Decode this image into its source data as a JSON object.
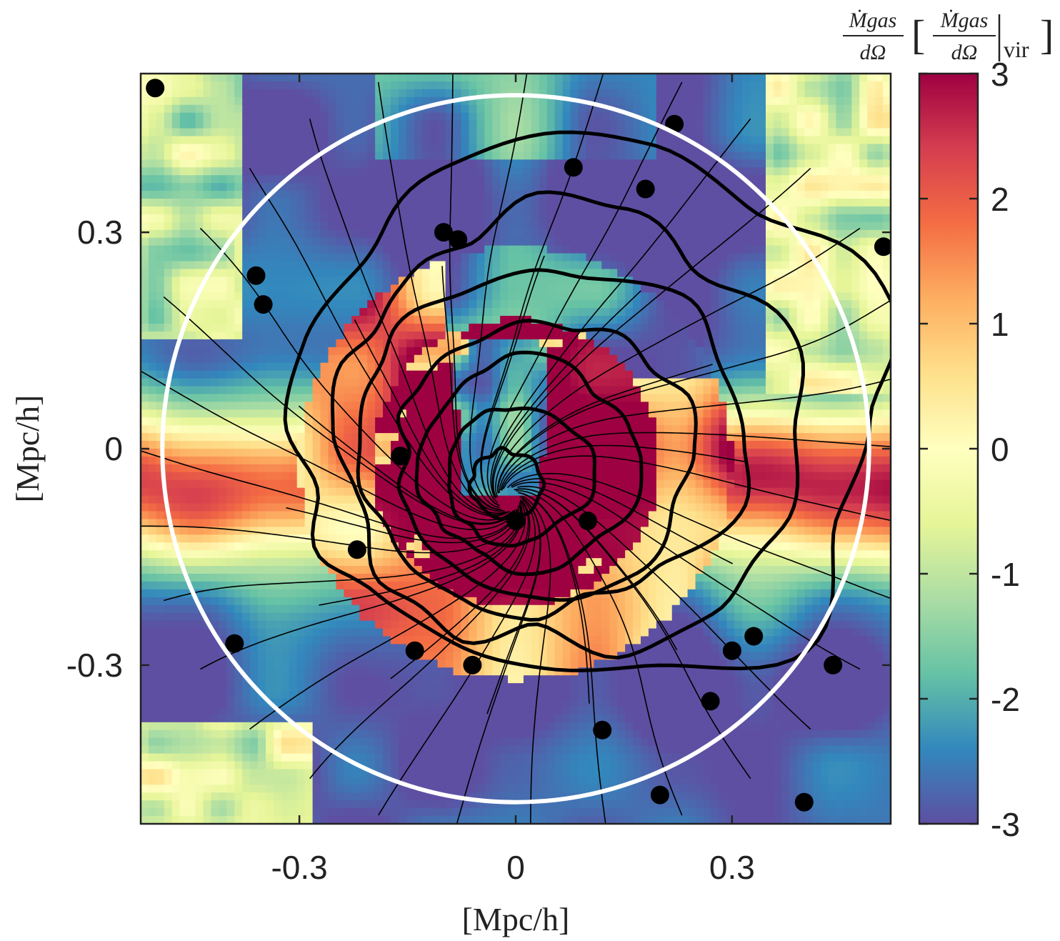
{
  "chart_data": {
    "type": "heatmap",
    "xlabel": "[Mpc/h]",
    "ylabel": "[Mpc/h]",
    "xlim": [
      -0.52,
      0.52
    ],
    "ylim": [
      -0.52,
      0.52
    ],
    "x_ticks": [
      {
        "value": -0.3,
        "label": "-0.3"
      },
      {
        "value": 0,
        "label": "0"
      },
      {
        "value": 0.3,
        "label": "0.3"
      }
    ],
    "y_ticks": [
      {
        "value": 0.3,
        "label": "0.3"
      },
      {
        "value": 0,
        "label": "0"
      },
      {
        "value": -0.3,
        "label": "-0.3"
      }
    ],
    "colorbar": {
      "label_left_num": "Ṁgas",
      "label_left_den": "dΩ",
      "label_unit_num": "Ṁgas",
      "label_unit_den": "dΩ",
      "label_unit_sub": "vir",
      "range": [
        -3,
        3
      ],
      "colormap": "Spectral (reversed)",
      "ticks": [
        {
          "value": 3,
          "label": "3"
        },
        {
          "value": 2,
          "label": "2"
        },
        {
          "value": 1,
          "label": "1"
        },
        {
          "value": 0,
          "label": "0"
        },
        {
          "value": -1,
          "label": "-1"
        },
        {
          "value": -2,
          "label": "-2"
        },
        {
          "value": -3,
          "label": "-3"
        }
      ]
    },
    "virial_circle": {
      "center": [
        0,
        0
      ],
      "radius": 0.49,
      "color": "#ffffff"
    },
    "overlays": [
      "streamlines",
      "density contours"
    ],
    "field_description": "Inner disc (r < ~0.2) dominated by inflow (high positive values, dark red) with a tongue of outflow from centre towards top; outer ring mostly outflow (blue/purple) except a red/orange band along the horizontal axis on both sides."
  },
  "colors": {
    "map": [
      "#5e4fa2",
      "#3288bd",
      "#66c2a5",
      "#abdda4",
      "#e6f598",
      "#ffffbf",
      "#fee08b",
      "#fdae61",
      "#f46d43",
      "#d53e4f",
      "#9e0142"
    ],
    "circle": "#ffffff",
    "lines": "#000000",
    "axis": "#222222"
  }
}
